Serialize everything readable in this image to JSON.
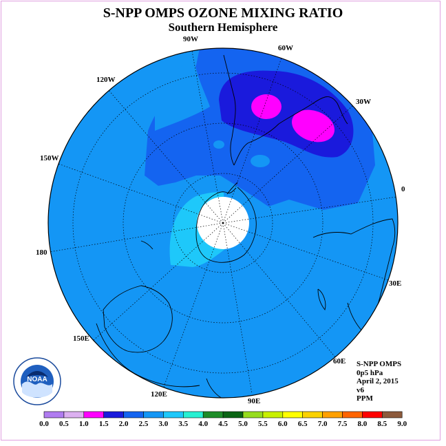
{
  "title": "S-NPP OMPS OZONE MIXING RATIO",
  "subtitle": "Southern Hemisphere",
  "meridian_labels": [
    "90W",
    "60W",
    "120W",
    "30W",
    "150W",
    "0",
    "180",
    "30E",
    "150E",
    "60E",
    "120E",
    "90E"
  ],
  "info": {
    "line1": "S-NPP OMPS",
    "line2": "0p5 hPa",
    "line3": "April 2, 2015",
    "line4": "v6",
    "line5": "PPM"
  },
  "logo_text": "NOAA",
  "colorbar": {
    "ticks": [
      "0.0",
      "0.5",
      "1.0",
      "1.5",
      "2.0",
      "2.5",
      "3.0",
      "3.5",
      "4.0",
      "4.5",
      "5.0",
      "5.5",
      "6.0",
      "6.5",
      "7.0",
      "7.5",
      "8.0",
      "8.5",
      "9.0"
    ],
    "colors": [
      "#b07cf0",
      "#dcb0f0",
      "#ff00ff",
      "#1a1adc",
      "#1464f0",
      "#1496f5",
      "#1ec8fa",
      "#28f0d2",
      "#1e8c28",
      "#0a6414",
      "#96dc1e",
      "#c8f000",
      "#ffff00",
      "#fad200",
      "#ffa000",
      "#ff6400",
      "#ff0000",
      "#8c5a3c"
    ]
  }
}
